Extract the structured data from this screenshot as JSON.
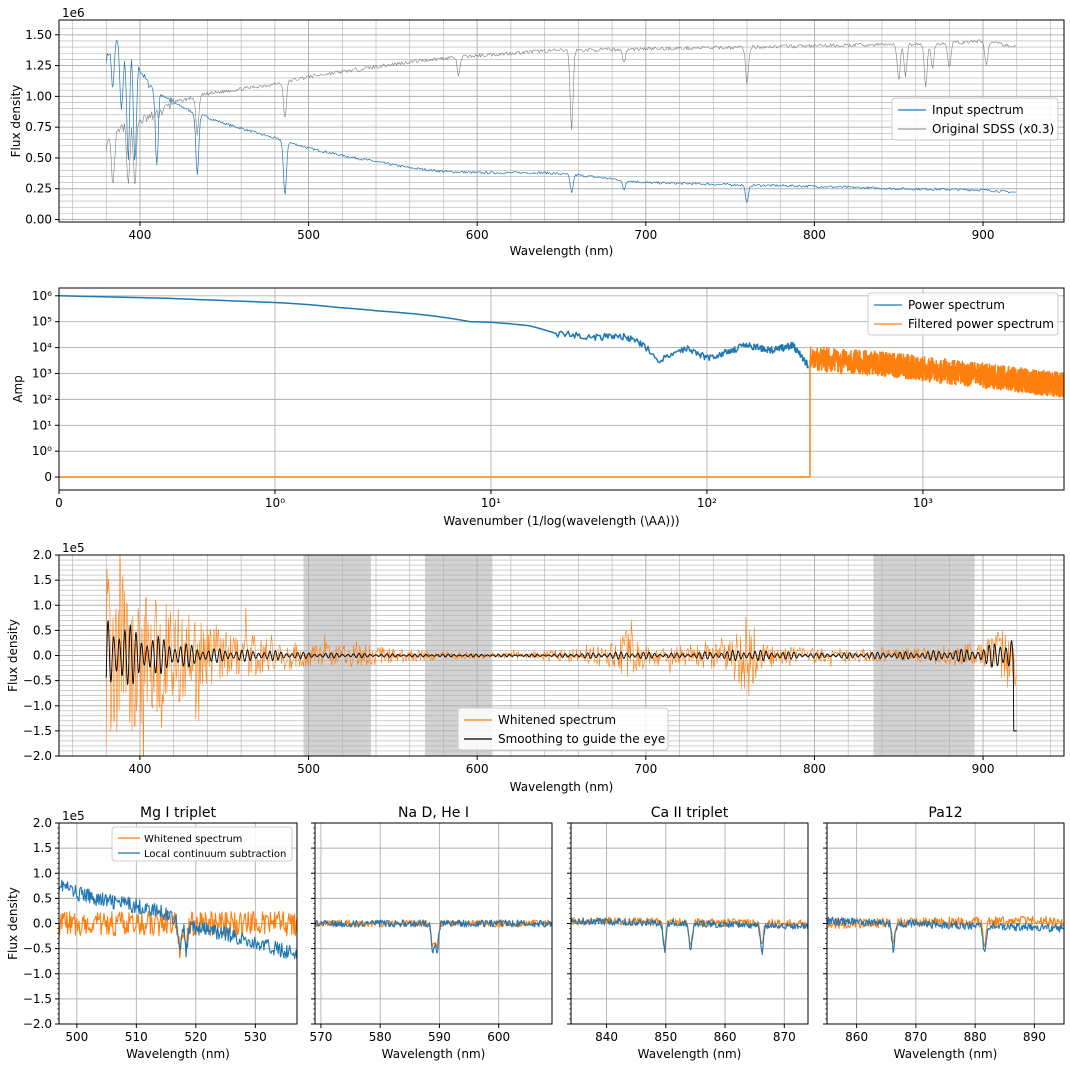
{
  "colors": {
    "blue": "#1f77b4",
    "orange": "#ff7f0e",
    "black": "#000000",
    "gray": "#7f7f7f",
    "grid": "#b0b0b0",
    "band": "#d3d3d3"
  },
  "chart_data": [
    {
      "id": "p1",
      "type": "line",
      "xlabel": "Wavelength (nm)",
      "ylabel": "Flux density",
      "offset_text": "1e6",
      "xlim": [
        352,
        948
      ],
      "ylim": [
        -0.02,
        1.62
      ],
      "xticks": [
        400,
        500,
        600,
        700,
        800,
        900
      ],
      "yticks": [
        0.0,
        0.25,
        0.5,
        0.75,
        1.0,
        1.25,
        1.5
      ],
      "ytick_labels": [
        "0.00",
        "0.25",
        "0.50",
        "0.75",
        "1.00",
        "1.25",
        "1.50"
      ],
      "legend": [
        "Input spectrum",
        "Original SDSS (x0.3)"
      ],
      "series": [
        {
          "name": "Input spectrum",
          "color": "#1f77b4",
          "x": [
            380,
            385,
            390,
            395,
            400,
            405,
            410,
            420,
            430,
            440,
            450,
            460,
            470,
            480,
            490,
            500,
            520,
            540,
            560,
            580,
            600,
            640,
            660,
            700,
            760,
            800,
            850,
            900,
            920
          ],
          "y": [
            1.3,
            1.5,
            1.35,
            1.4,
            1.22,
            1.1,
            1.05,
            0.95,
            0.88,
            0.83,
            0.78,
            0.74,
            0.7,
            0.66,
            0.62,
            0.58,
            0.52,
            0.47,
            0.42,
            0.39,
            0.38,
            0.38,
            0.36,
            0.3,
            0.28,
            0.27,
            0.25,
            0.24,
            0.22
          ],
          "absorption": [
            [
              384,
              0.4
            ],
            [
              389,
              0.5
            ],
            [
              393,
              0.9
            ],
            [
              397,
              0.9
            ],
            [
              410,
              0.6
            ],
            [
              434,
              0.5
            ],
            [
              486,
              0.45
            ],
            [
              656,
              0.15
            ],
            [
              687,
              0.08
            ],
            [
              760,
              0.15
            ]
          ]
        },
        {
          "name": "Original SDSS (x0.3)",
          "color": "#7f7f7f",
          "x": [
            380,
            390,
            400,
            410,
            420,
            440,
            460,
            480,
            500,
            520,
            540,
            560,
            580,
            600,
            640,
            680,
            720,
            760,
            800,
            840,
            880,
            900,
            920
          ],
          "y": [
            0.6,
            0.75,
            0.8,
            0.85,
            0.95,
            1.02,
            1.06,
            1.1,
            1.16,
            1.2,
            1.24,
            1.28,
            1.31,
            1.33,
            1.37,
            1.38,
            1.39,
            1.4,
            1.41,
            1.42,
            1.43,
            1.45,
            1.4
          ],
          "absorption": [
            [
              384,
              0.4
            ],
            [
              393,
              0.5
            ],
            [
              397,
              0.5
            ],
            [
              434,
              0.3
            ],
            [
              486,
              0.3
            ],
            [
              589,
              0.15
            ],
            [
              656,
              0.65
            ],
            [
              687,
              0.1
            ],
            [
              760,
              0.3
            ],
            [
              850,
              0.3
            ],
            [
              854,
              0.25
            ],
            [
              866,
              0.35
            ],
            [
              870,
              0.2
            ],
            [
              880,
              0.2
            ],
            [
              902,
              0.2
            ]
          ]
        }
      ]
    },
    {
      "id": "p2",
      "type": "line",
      "scale": "symlog",
      "xlabel": "Wavenumber (1/log(wavelength (\\AA)))",
      "ylabel": "Amp",
      "xlim": [
        0,
        4500
      ],
      "ylim": [
        -0.5,
        2000000
      ],
      "xticks": [
        0,
        1,
        10,
        100,
        1000
      ],
      "xtick_labels": [
        "0",
        "10⁰",
        "10¹",
        "10²",
        "10³"
      ],
      "yticks": [
        0,
        1,
        10,
        100,
        1000,
        10000,
        100000,
        1000000
      ],
      "ytick_labels": [
        "0",
        "10⁰",
        "10¹",
        "10²",
        "10³",
        "10⁴",
        "10⁵",
        "10⁶"
      ],
      "legend": [
        "Power spectrum",
        "Filtered power spectrum"
      ],
      "cutoff": 300,
      "series": [
        {
          "name": "Power spectrum",
          "color": "#1f77b4",
          "x": [
            0,
            0.5,
            1,
            2,
            3,
            5,
            8,
            10,
            15,
            20,
            25,
            30,
            40,
            50,
            60,
            80,
            100,
            150,
            200,
            250,
            295
          ],
          "y": [
            1000000,
            800000,
            550000,
            350000,
            260000,
            180000,
            100000,
            95000,
            70000,
            35000,
            30000,
            25000,
            28000,
            14000,
            3000,
            10000,
            4000,
            12000,
            8000,
            12000,
            2000
          ]
        },
        {
          "name": "Filtered power spectrum",
          "color": "#ff7f0e",
          "x": [
            0,
            300,
            300,
            400,
            600,
            1000,
            1500,
            2000,
            3000,
            4500
          ],
          "y": [
            0,
            0,
            4000,
            3000,
            2500,
            1500,
            1000,
            800,
            500,
            350
          ]
        }
      ]
    },
    {
      "id": "p3",
      "type": "line",
      "xlabel": "Wavelength (nm)",
      "ylabel": "Flux density",
      "offset_text": "1e5",
      "xlim": [
        352,
        948
      ],
      "ylim": [
        -2.0,
        2.0
      ],
      "xticks": [
        400,
        500,
        600,
        700,
        800,
        900
      ],
      "yticks": [
        -2.0,
        -1.5,
        -1.0,
        -0.5,
        0.0,
        0.5,
        1.0,
        1.5,
        2.0
      ],
      "ytick_labels": [
        "−2.0",
        "−1.5",
        "−1.0",
        "−0.5",
        "0.0",
        "0.5",
        "1.0",
        "1.5",
        "2.0"
      ],
      "bands": [
        [
          497,
          537
        ],
        [
          569,
          609
        ],
        [
          835,
          895
        ]
      ],
      "legend": [
        "Whitened spectrum",
        "Smoothing to guide the eye"
      ],
      "series": [
        {
          "name": "Whitened spectrum",
          "color": "#ff7f0e",
          "envelope_x": [
            380,
            400,
            420,
            440,
            460,
            480,
            500,
            520,
            540,
            560,
            580,
            620,
            660,
            680,
            690,
            700,
            720,
            750,
            760,
            770,
            800,
            850,
            900,
            920
          ],
          "envelope_y": [
            1.8,
            1.5,
            1.0,
            0.6,
            0.45,
            0.35,
            0.25,
            0.25,
            0.2,
            0.12,
            0.08,
            0.06,
            0.15,
            0.25,
            0.6,
            0.2,
            0.2,
            0.3,
            1.0,
            0.2,
            0.15,
            0.12,
            0.25,
            0.8
          ]
        },
        {
          "name": "Smoothing to guide the eye",
          "color": "#000000",
          "envelope_x": [
            380,
            400,
            420,
            440,
            460,
            480,
            500,
            540,
            580,
            640,
            660,
            690,
            720,
            760,
            800,
            860,
            900,
            915,
            920
          ],
          "envelope_y": [
            0.9,
            0.5,
            0.3,
            0.15,
            0.12,
            0.1,
            0.06,
            0.04,
            0.03,
            0.03,
            0.05,
            0.08,
            0.05,
            0.12,
            0.05,
            0.08,
            0.15,
            0.4,
            0.5
          ]
        }
      ]
    },
    {
      "id": "p4a",
      "type": "line",
      "title": "Mg I triplet",
      "xlabel": "Wavelength (nm)",
      "ylabel": "Flux density",
      "offset_text": "1e5",
      "xlim": [
        497,
        537
      ],
      "ylim": [
        -2.0,
        2.0
      ],
      "xticks": [
        500,
        510,
        520,
        530
      ],
      "yticks": [
        -2.0,
        -1.5,
        -1.0,
        -0.5,
        0.0,
        0.5,
        1.0,
        1.5,
        2.0
      ],
      "ytick_labels": [
        "−2.0",
        "−1.5",
        "−1.0",
        "−0.5",
        "0.0",
        "0.5",
        "1.0",
        "1.5",
        "2.0"
      ],
      "legend": [
        "Whitened spectrum",
        "Local continuum subtraction"
      ],
      "lines": [
        517.3,
        518.4
      ],
      "series": [
        {
          "name": "Whitened spectrum",
          "color": "#ff7f0e",
          "x": [
            497,
            537
          ],
          "y": [
            0.0,
            0.0
          ],
          "noise": 0.25
        },
        {
          "name": "Local continuum subtraction",
          "color": "#1f77b4",
          "x": [
            497,
            500,
            505,
            510,
            515,
            520,
            525,
            530,
            537
          ],
          "y": [
            0.8,
            0.6,
            0.45,
            0.35,
            0.2,
            -0.1,
            -0.2,
            -0.4,
            -0.6
          ],
          "noise": 0.15
        }
      ]
    },
    {
      "id": "p4b",
      "type": "line",
      "title": "Na D, He I",
      "xlabel": "Wavelength (nm)",
      "xlim": [
        569,
        609
      ],
      "ylim": [
        -2.0,
        2.0
      ],
      "xticks": [
        570,
        580,
        590,
        600
      ],
      "yticks": [
        -2.0,
        -1.5,
        -1.0,
        -0.5,
        0.0,
        0.5,
        1.0,
        1.5,
        2.0
      ],
      "lines": [
        588.9,
        589.6
      ],
      "series": [
        {
          "name": "Whitened spectrum",
          "color": "#ff7f0e",
          "x": [
            569,
            609
          ],
          "y": [
            0.0,
            0.0
          ],
          "noise": 0.07
        },
        {
          "name": "Local continuum subtraction",
          "color": "#1f77b4",
          "x": [
            569,
            609
          ],
          "y": [
            0.0,
            0.0
          ],
          "noise": 0.07
        }
      ]
    },
    {
      "id": "p4c",
      "type": "line",
      "title": "Ca II triplet",
      "xlabel": "Wavelength (nm)",
      "xlim": [
        834,
        874
      ],
      "ylim": [
        -2.0,
        2.0
      ],
      "xticks": [
        840,
        850,
        860,
        870
      ],
      "yticks": [
        -2.0,
        -1.5,
        -1.0,
        -0.5,
        0.0,
        0.5,
        1.0,
        1.5,
        2.0
      ],
      "lines": [
        849.8,
        854.2,
        866.2
      ],
      "series": [
        {
          "name": "Whitened spectrum",
          "color": "#ff7f0e",
          "x": [
            834,
            874
          ],
          "y": [
            0.05,
            0.0
          ],
          "noise": 0.08
        },
        {
          "name": "Local continuum subtraction",
          "color": "#1f77b4",
          "x": [
            834,
            874
          ],
          "y": [
            0.05,
            -0.05
          ],
          "noise": 0.07
        }
      ]
    },
    {
      "id": "p4d",
      "type": "line",
      "title": "Pa12",
      "xlabel": "Wavelength (nm)",
      "xlim": [
        855,
        895
      ],
      "ylim": [
        -2.0,
        2.0
      ],
      "xticks": [
        860,
        870,
        880,
        890
      ],
      "yticks": [
        -2.0,
        -1.5,
        -1.0,
        -0.5,
        0.0,
        0.5,
        1.0,
        1.5,
        2.0
      ],
      "lines": [
        866.2,
        881.6
      ],
      "series": [
        {
          "name": "Whitened spectrum",
          "color": "#ff7f0e",
          "x": [
            855,
            895
          ],
          "y": [
            0.0,
            0.05
          ],
          "noise": 0.1
        },
        {
          "name": "Local continuum subtraction",
          "color": "#1f77b4",
          "x": [
            855,
            895
          ],
          "y": [
            0.05,
            -0.1
          ],
          "noise": 0.08
        }
      ]
    }
  ]
}
